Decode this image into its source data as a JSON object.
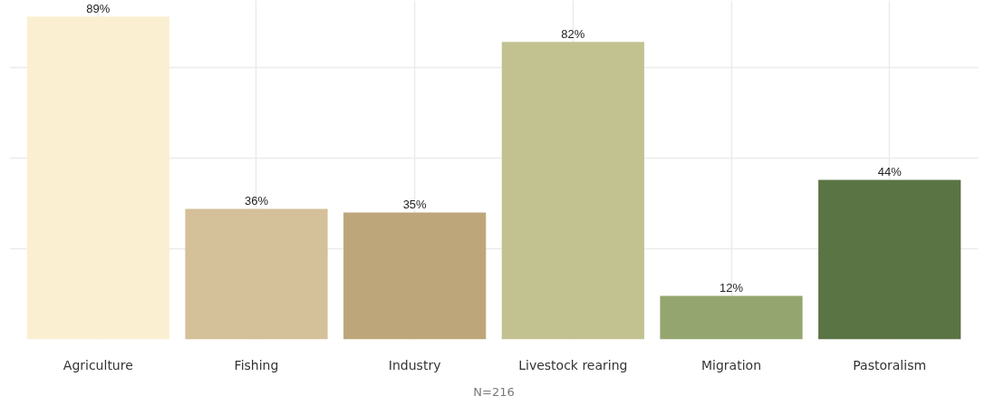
{
  "chart_data": {
    "type": "bar",
    "categories": [
      "Agriculture",
      "Fishing",
      "Industry",
      "Livestock rearing",
      "Migration",
      "Pastoralism"
    ],
    "values": [
      89,
      36,
      35,
      82,
      12,
      44
    ],
    "value_labels": [
      "89%",
      "36%",
      "35%",
      "82%",
      "12%",
      "44%"
    ],
    "colors": [
      "#faefd1",
      "#d4c099",
      "#bda67a",
      "#c2c291",
      "#94a56f",
      "#5b7444"
    ],
    "tick_labels": "x",
    "grid": true,
    "annotations": [
      "N=216"
    ]
  }
}
